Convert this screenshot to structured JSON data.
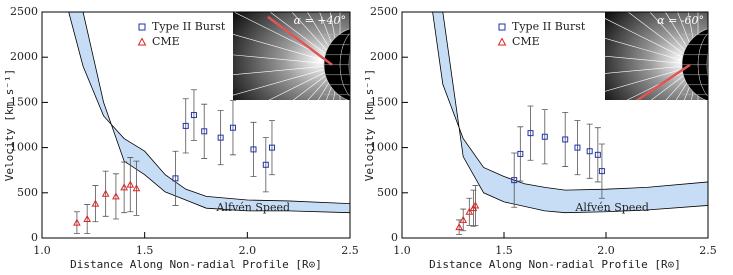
{
  "chart_data": [
    {
      "type": "scatter",
      "xlabel": "Distance Along Non-radial Profile [R⊙]",
      "ylabel": "Velocity [km s⁻¹]",
      "xlim": [
        1.0,
        2.5
      ],
      "xticks": [
        {
          "value": 1.0,
          "label": "1.0"
        },
        1.5,
        {
          "value": 2.0,
          "label": "2.0"
        },
        2.5
      ],
      "ylim": [
        0,
        2500
      ],
      "yticks": [
        0,
        500,
        1000,
        1500,
        2000,
        2500
      ],
      "inset_label": "α = +40°",
      "band_label": "Alfvén Speed",
      "band": {
        "color": "#c6ddf5",
        "upper": {
          "x": [
            1.13,
            1.2,
            1.3,
            1.4,
            1.5,
            1.6,
            1.7,
            1.8,
            2.0,
            2.2,
            2.5
          ],
          "values": [
            2500,
            1900,
            1350,
            1100,
            960,
            700,
            540,
            460,
            420,
            410,
            380
          ]
        },
        "lower": {
          "x": [
            1.2,
            1.25,
            1.3,
            1.4,
            1.5,
            1.6,
            1.7,
            1.8,
            2.0,
            2.2,
            2.5
          ],
          "values": [
            2500,
            2000,
            1500,
            850,
            700,
            510,
            420,
            330,
            300,
            300,
            280
          ]
        }
      },
      "series": [
        {
          "name": "Type II Burst",
          "color": "#2233aa",
          "marker": "square",
          "x": [
            1.65,
            1.7,
            1.74,
            1.79,
            1.87,
            1.93,
            2.03,
            2.09,
            2.12
          ],
          "values": [
            660,
            1240,
            1360,
            1180,
            1110,
            1220,
            980,
            810,
            1000
          ],
          "errors": [
            300,
            300,
            280,
            300,
            300,
            300,
            300,
            300,
            300
          ]
        },
        {
          "name": "CME",
          "color": "#dd2222",
          "marker": "triangle",
          "x": [
            1.17,
            1.22,
            1.26,
            1.31,
            1.36,
            1.4,
            1.43,
            1.46
          ],
          "values": [
            170,
            210,
            380,
            490,
            460,
            560,
            590,
            550
          ],
          "errors": [
            120,
            160,
            200,
            250,
            250,
            280,
            300,
            300
          ]
        }
      ]
    },
    {
      "type": "scatter",
      "xlabel": "Distance Along Non-radial Profile [R⊙]",
      "ylabel": "Velocity [km s⁻¹]",
      "xlim": [
        1.0,
        2.5
      ],
      "xticks": [
        {
          "value": 1.0,
          "label": "1.0"
        },
        1.5,
        {
          "value": 2.0,
          "label": "2.0"
        },
        2.5
      ],
      "ylim": [
        0,
        2500
      ],
      "yticks": [
        0,
        500,
        1000,
        1500,
        2000,
        2500
      ],
      "inset_label": "α = -60°",
      "band_label": "Alfvén Speed",
      "band": {
        "color": "#c6ddf5",
        "upper": {
          "x": [
            1.15,
            1.2,
            1.3,
            1.4,
            1.5,
            1.6,
            1.7,
            1.8,
            2.0,
            2.2,
            2.5
          ],
          "values": [
            2500,
            1700,
            1100,
            780,
            680,
            600,
            560,
            530,
            540,
            560,
            620
          ]
        },
        "lower": {
          "x": [
            1.2,
            1.25,
            1.3,
            1.4,
            1.5,
            1.7,
            1.8,
            2.0,
            2.2,
            2.5
          ],
          "values": [
            2500,
            1700,
            900,
            500,
            400,
            300,
            280,
            290,
            310,
            360
          ]
        }
      },
      "series": [
        {
          "name": "Type II Burst",
          "color": "#2233aa",
          "marker": "square",
          "x": [
            1.55,
            1.58,
            1.63,
            1.7,
            1.8,
            1.86,
            1.92,
            1.96,
            1.98
          ],
          "values": [
            640,
            930,
            1160,
            1120,
            1090,
            1000,
            960,
            920,
            740
          ],
          "errors": [
            300,
            300,
            300,
            300,
            300,
            300,
            300,
            300,
            300
          ]
        },
        {
          "name": "CME",
          "color": "#dd2222",
          "marker": "triangle",
          "x": [
            1.28,
            1.3,
            1.33,
            1.35,
            1.36
          ],
          "values": [
            120,
            200,
            290,
            330,
            360
          ],
          "errors": [
            80,
            120,
            150,
            200,
            220
          ]
        }
      ]
    }
  ]
}
